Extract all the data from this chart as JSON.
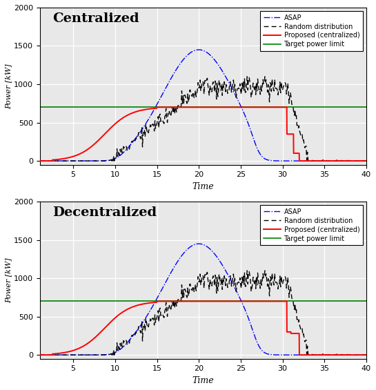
{
  "title_top": "Centralized",
  "title_bottom": "Decentralized",
  "xlabel": "Time",
  "ylabel": "Power [kW]",
  "xlim": [
    1,
    40
  ],
  "ylim": [
    -50,
    2000
  ],
  "xticks": [
    5,
    10,
    15,
    20,
    25,
    30,
    35,
    40
  ],
  "yticks": [
    0,
    500,
    1000,
    1500,
    2000
  ],
  "target_power_limit": 700,
  "legend_labels_top": [
    "ASAP",
    "Random distribution",
    "Proposed (centralized)",
    "Target power limit"
  ],
  "legend_labels_bottom": [
    "ASAP",
    "Random distribution",
    "Proposed (centralized)",
    "Target power limit"
  ],
  "bg_color": "#e8e8e8",
  "grid_color": "#ffffff",
  "asap_color": "blue",
  "random_color": "black",
  "proposed_color": "red",
  "target_color": "green"
}
